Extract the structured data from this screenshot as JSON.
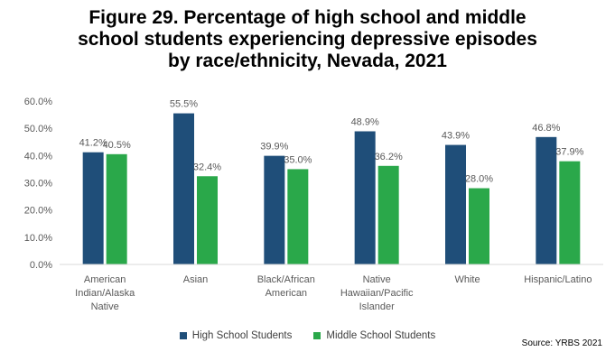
{
  "chart_data": {
    "type": "bar",
    "title_lines": [
      "Figure 29. Percentage of high school and middle",
      "school students experiencing depressive episodes",
      "by race/ethnicity, Nevada, 2021"
    ],
    "categories": [
      [
        "American",
        "Indian/Alaska",
        "Native"
      ],
      [
        "Asian"
      ],
      [
        "Black/African",
        "American"
      ],
      [
        "Native",
        "Hawaiian/Pacific",
        "Islander"
      ],
      [
        "White"
      ],
      [
        "Hispanic/Latino"
      ]
    ],
    "series": [
      {
        "name": "High School Students",
        "color": "#1f4e79",
        "values": [
          41.2,
          55.5,
          39.9,
          48.9,
          43.9,
          46.8
        ],
        "labels": [
          "41.2%",
          "55.5%",
          "39.9%",
          "48.9%",
          "43.9%",
          "46.8%"
        ]
      },
      {
        "name": "Middle School Students",
        "color": "#2aa84a",
        "values": [
          40.5,
          32.4,
          35.0,
          36.2,
          28.0,
          37.9
        ],
        "labels": [
          "40.5%",
          "32.4%",
          "35.0%",
          "36.2%",
          "28.0%",
          "37.9%"
        ]
      }
    ],
    "ylim": [
      0,
      60
    ],
    "yticks": [
      0,
      10,
      20,
      30,
      40,
      50,
      60
    ],
    "ytick_labels": [
      "0.0%",
      "10.0%",
      "20.0%",
      "30.0%",
      "40.0%",
      "50.0%",
      "60.0%"
    ],
    "grid": false,
    "legend_position": "bottom",
    "source": "Source: YRBS 2021"
  }
}
